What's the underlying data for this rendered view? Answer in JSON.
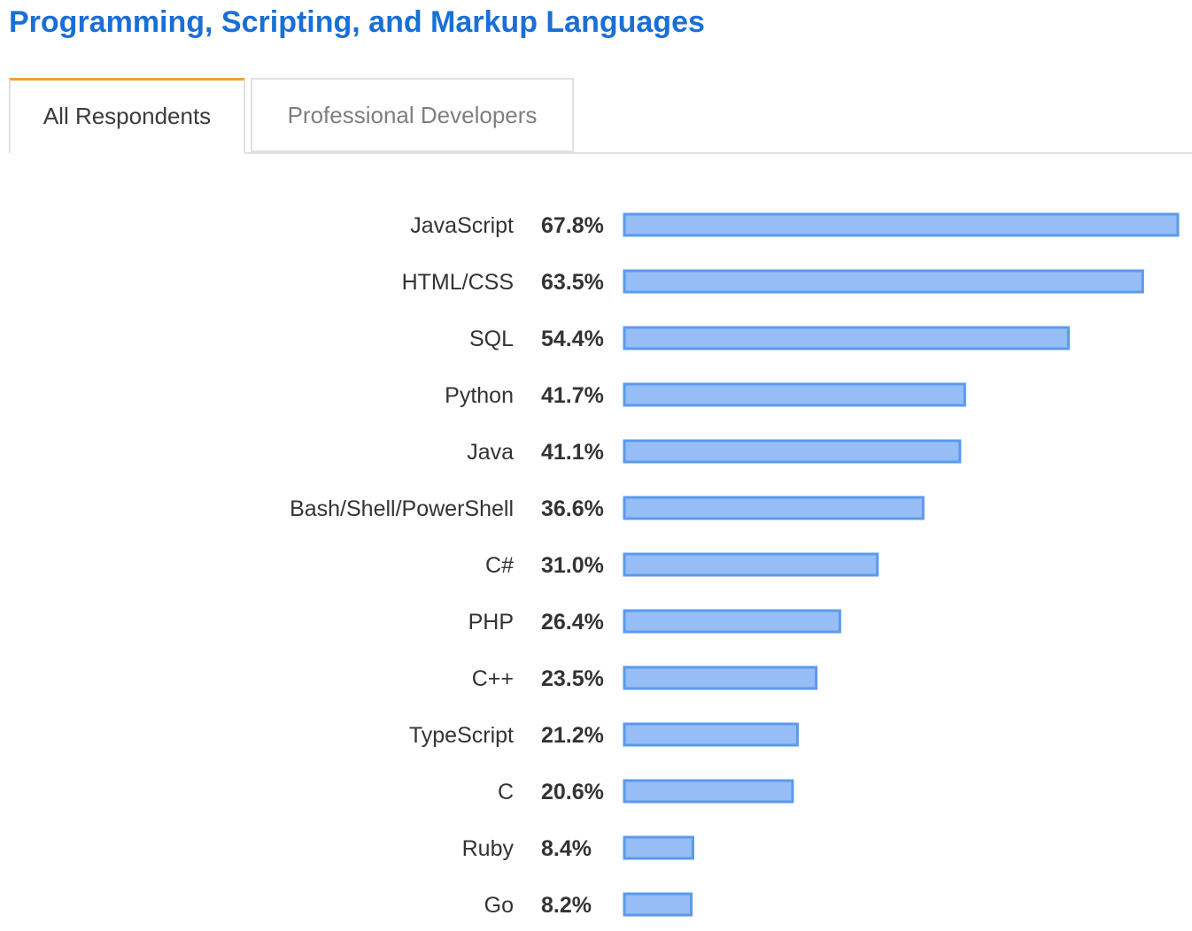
{
  "title": "Programming, Scripting, and Markup Languages",
  "tabs": [
    {
      "label": "All Respondents",
      "active": true
    },
    {
      "label": "Professional Developers",
      "active": false
    }
  ],
  "colors": {
    "title": "#1a6fd6",
    "tab_active_accent": "#f0a03a",
    "bar_fill": "#96bdf6",
    "bar_stroke": "#5b9aec",
    "label_text": "#333333"
  },
  "chart_data": {
    "type": "bar",
    "orientation": "horizontal",
    "categories": [
      "JavaScript",
      "HTML/CSS",
      "SQL",
      "Python",
      "Java",
      "Bash/Shell/PowerShell",
      "C#",
      "PHP",
      "C++",
      "TypeScript",
      "C",
      "Ruby",
      "Go"
    ],
    "values": [
      67.8,
      63.5,
      54.4,
      41.7,
      41.1,
      36.6,
      31.0,
      26.4,
      23.5,
      21.2,
      20.6,
      8.4,
      8.2
    ],
    "value_labels": [
      "67.8%",
      "63.5%",
      "54.4%",
      "41.7%",
      "41.1%",
      "36.6%",
      "31.0%",
      "26.4%",
      "23.5%",
      "21.2%",
      "20.6%",
      "8.4%",
      "8.2%"
    ],
    "unit": "%",
    "title": "",
    "xlabel": "",
    "ylabel": "",
    "grid": false,
    "legend": "none"
  }
}
